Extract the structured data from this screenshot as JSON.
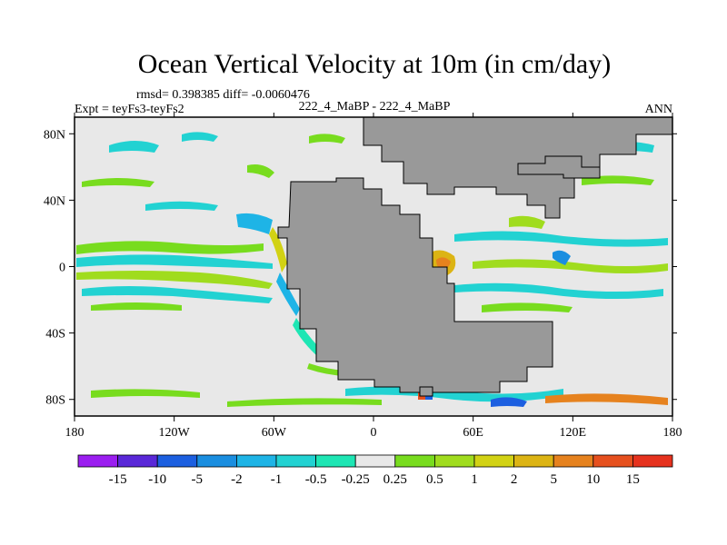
{
  "chart_data": {
    "type": "heatmap",
    "title": "Ocean Vertical Velocity at 10m (in cm/day)",
    "subtitle_stats": "rmsd= 0.398385 diff= -0.0060476",
    "left_label": "Expt = teyFs3-teyFs2",
    "center_label": "222_4_MaBP - 222_4_MaBP",
    "right_label": "ANN",
    "x_axis": {
      "range": [
        -180,
        180
      ],
      "ticks": [
        {
          "value": -180,
          "label": "180"
        },
        {
          "value": -120,
          "label": "120W"
        },
        {
          "value": -60,
          "label": "60W"
        },
        {
          "value": 0,
          "label": "0"
        },
        {
          "value": 60,
          "label": "60E"
        },
        {
          "value": 120,
          "label": "120E"
        },
        {
          "value": 180,
          "label": "180"
        }
      ]
    },
    "y_axis": {
      "range": [
        -90,
        90
      ],
      "ticks": [
        {
          "value": 80,
          "label": "80N"
        },
        {
          "value": 40,
          "label": "40N"
        },
        {
          "value": 0,
          "label": "0"
        },
        {
          "value": -40,
          "label": "40S"
        },
        {
          "value": -80,
          "label": "80S"
        }
      ]
    },
    "colorbar": {
      "labels": [
        "-15",
        "-10",
        "-5",
        "-2",
        "-1",
        "-0.5",
        "-0.25",
        "0.25",
        "0.5",
        "1",
        "2",
        "5",
        "10",
        "15"
      ],
      "colors": [
        "#9b1ef0",
        "#5a28d8",
        "#1c5fe0",
        "#1a8ee0",
        "#1eb4e6",
        "#22d2d2",
        "#1ee6b4",
        "#e8e8e8",
        "#78dc1e",
        "#a0dc1e",
        "#d2d214",
        "#dcb414",
        "#e6821e",
        "#e6501e",
        "#e6321e"
      ]
    },
    "land_color": "#999999",
    "ocean_color": "#e8e8e8"
  }
}
